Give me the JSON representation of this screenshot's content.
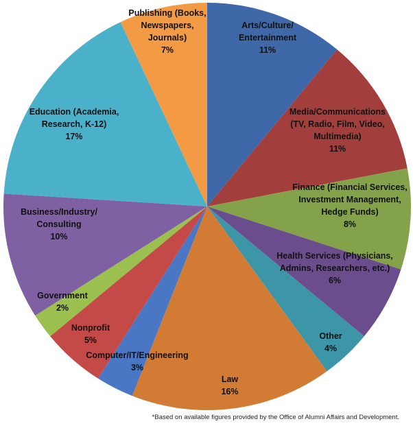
{
  "chart_data": {
    "type": "pie",
    "title": "",
    "unit": "%",
    "slices": [
      {
        "label_lines": [
          "Arts/Culture/",
          "Entertainment"
        ],
        "value": 11,
        "value_label": "11%",
        "color": "#3e68a8"
      },
      {
        "label_lines": [
          "Media/Communications",
          "(TV, Radio, Film, Video,",
          "Multimedia)"
        ],
        "value": 11,
        "value_label": "11%",
        "color": "#a23f3d"
      },
      {
        "label_lines": [
          "Finance (Financial Services,",
          "Investment Management,",
          "Hedge Funds)"
        ],
        "value": 8,
        "value_label": "8%",
        "color": "#84a24a"
      },
      {
        "label_lines": [
          "Health Services (Physicians,",
          "Admins, Researchers, etc.)"
        ],
        "value": 6,
        "value_label": "6%",
        "color": "#6b4d8e"
      },
      {
        "label_lines": [
          "Other"
        ],
        "value": 4,
        "value_label": "4%",
        "color": "#3d95a8"
      },
      {
        "label_lines": [
          "Law"
        ],
        "value": 16,
        "value_label": "16%",
        "color": "#d17b35"
      },
      {
        "label_lines": [
          "Computer/IT/Engineering"
        ],
        "value": 3,
        "value_label": "3%",
        "color": "#4a77c4"
      },
      {
        "label_lines": [
          "Nonprofit"
        ],
        "value": 5,
        "value_label": "5%",
        "color": "#c34a46"
      },
      {
        "label_lines": [
          "Government"
        ],
        "value": 2,
        "value_label": "2%",
        "color": "#9bc04f"
      },
      {
        "label_lines": [
          "Business/Industry/",
          "Consulting"
        ],
        "value": 10,
        "value_label": "10%",
        "color": "#7f60a3"
      },
      {
        "label_lines": [
          "Education (Academia,",
          "Research, K-12)"
        ],
        "value": 17,
        "value_label": "17%",
        "color": "#4bb0ca"
      },
      {
        "label_lines": [
          "Publishing (Books,",
          "Newspapers,",
          "Journals)"
        ],
        "value": 7,
        "value_label": "7%",
        "color": "#f39a45"
      }
    ],
    "start": "top",
    "direction": "clockwise",
    "footnote": "*Based on available figures provided by the Office of Alumni Affairs and Development."
  }
}
